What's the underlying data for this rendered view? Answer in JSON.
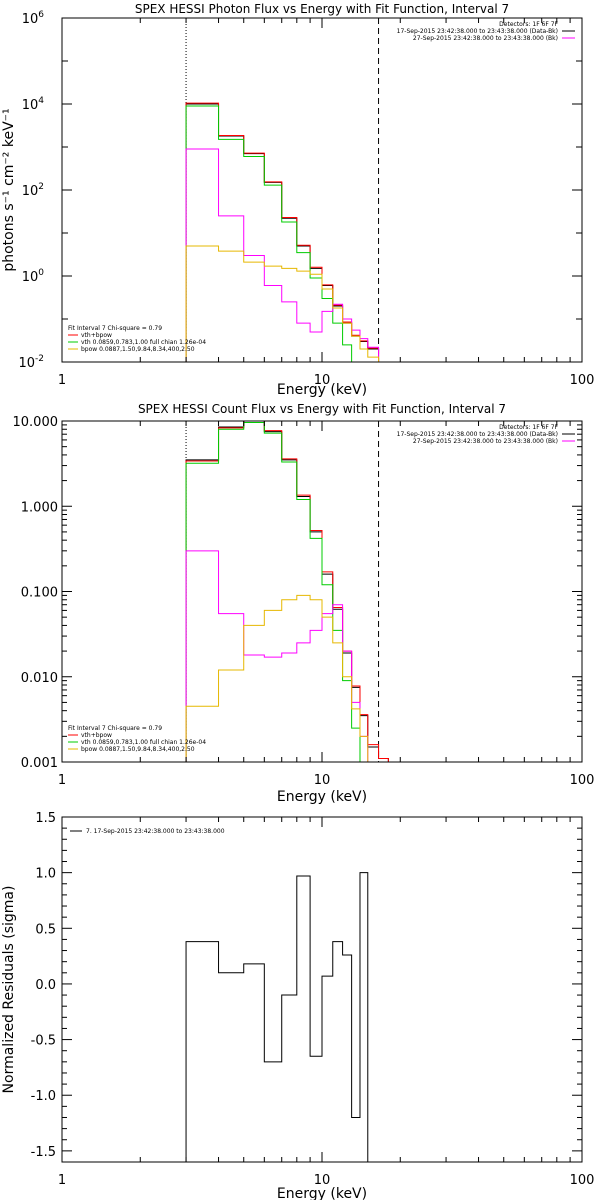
{
  "chart_data": [
    {
      "id": "photon",
      "type": "line",
      "title": "SPEX HESSI Photon Flux vs Energy with Fit Function, Interval 7",
      "xlabel": "Energy (keV)",
      "ylabel": "photons s⁻¹ cm⁻² keV⁻¹",
      "xscale": "log",
      "yscale": "log",
      "xlim": [
        1,
        100
      ],
      "ylim": [
        0.01,
        1000000
      ],
      "xticks": [
        "1",
        "10",
        "100"
      ],
      "ytick_values": [
        0.01,
        1,
        100,
        10000,
        1000000
      ],
      "ytick_mantissa": [
        "10",
        "10",
        "10",
        "10",
        "10"
      ],
      "ytick_exponent": [
        "-2",
        "0",
        "2",
        "4",
        "6"
      ],
      "vlines": [
        {
          "x": 3.0,
          "style": "dotted",
          "color": "#000000"
        },
        {
          "x": 16.5,
          "style": "dashed",
          "color": "#000000"
        }
      ],
      "header_lines": [
        {
          "text": "Detectors: 1F 6F 7F",
          "color": "#000000",
          "swatch": false
        },
        {
          "text": "17-Sep-2015 23:42:38.000 to 23:43:38.000 (Data-Bk)",
          "color": "#000000",
          "swatch": true
        },
        {
          "text": "27-Sep-2015 23:42:38.000 to 23:43:38.000 (Bk)",
          "color": "#ff00ff",
          "swatch": true
        }
      ],
      "fit_legend": [
        {
          "text": "Fit Interval  7   Chi-square = 0.79",
          "color": "#000000",
          "swatch": false
        },
        {
          "text": "vth+bpow",
          "color": "#ff0000",
          "swatch": true
        },
        {
          "text": "vth 0.0859,0.783,1.00  full chian 1.26e-04",
          "color": "#00cc00",
          "swatch": true
        },
        {
          "text": "bpow 0.0887,1.50,9.84,8.34,400,2.50",
          "color": "#e6b800",
          "swatch": true
        }
      ],
      "edges": [
        3.0,
        4.0,
        5.0,
        6.0,
        7.0,
        8.0,
        9.0,
        10.0,
        11.0,
        12.0,
        13.0,
        14.0,
        15.0,
        16.5
      ],
      "series": [
        {
          "name": "",
          "color": "#000000",
          "values": [
            10000,
            1800,
            700,
            150,
            22,
            5,
            1.5,
            0.6,
            0.2,
            0.08,
            0.04,
            0.03,
            0.02
          ]
        },
        {
          "name": "vth+bpow",
          "color": "#ff0000",
          "values": [
            10500,
            1850,
            720,
            155,
            23,
            5.2,
            1.6,
            0.62,
            0.21,
            0.085,
            0.042,
            0.031,
            0.021
          ]
        },
        {
          "name": "vth",
          "color": "#00cc00",
          "values": [
            9000,
            1500,
            600,
            130,
            18,
            3.5,
            0.9,
            0.3,
            0.08,
            0.025,
            0.01,
            0.01,
            0.01
          ]
        },
        {
          "name": "",
          "color": "#ff00ff",
          "values": [
            900,
            25,
            3,
            0.6,
            0.25,
            0.08,
            0.05,
            0.15,
            0.22,
            0.1,
            0.055,
            0.035,
            0.022
          ]
        },
        {
          "name": "bpow",
          "color": "#e6b800",
          "values": [
            5,
            3.8,
            2.1,
            1.7,
            1.5,
            1.3,
            1.1,
            0.5,
            0.18,
            0.08,
            0.04,
            0.02,
            0.013
          ]
        }
      ]
    },
    {
      "id": "count",
      "type": "line",
      "title": "SPEX HESSI Count Flux vs Energy with Fit Function, Interval 7",
      "xlabel": "Energy (keV)",
      "ylabel": "",
      "xscale": "log",
      "yscale": "log",
      "xlim": [
        1,
        100
      ],
      "ylim": [
        0.001,
        10
      ],
      "xticks": [
        "1",
        "10",
        "100"
      ],
      "ytick_values": [
        0.001,
        0.01,
        0.1,
        1,
        10
      ],
      "yticks": [
        "0.001",
        "0.010",
        "0.100",
        "1.000",
        "10.000"
      ],
      "vlines": [
        {
          "x": 3.0,
          "style": "dotted",
          "color": "#000000"
        },
        {
          "x": 16.5,
          "style": "dashed",
          "color": "#000000"
        }
      ],
      "header_lines": [
        {
          "text": "Detectors: 1F 6F 7F",
          "color": "#000000",
          "swatch": false
        },
        {
          "text": "17-Sep-2015 23:42:38.000 to 23:43:38.000 (Data-Bk)",
          "color": "#000000",
          "swatch": true
        },
        {
          "text": "27-Sep-2015 23:42:38.000 to 23:43:38.000 (Bk)",
          "color": "#ff00ff",
          "swatch": true
        }
      ],
      "fit_legend": [
        {
          "text": "Fit Interval  7   Chi-square = 0.79",
          "color": "#000000",
          "swatch": false
        },
        {
          "text": "vth+bpow",
          "color": "#ff0000",
          "swatch": true
        },
        {
          "text": "vth 0.0859,0.783,1.00  full chian 1.26e-04",
          "color": "#00cc00",
          "swatch": true
        },
        {
          "text": "bpow 0.0887,1.50,9.84,8.34,400,2.50",
          "color": "#e6b800",
          "swatch": true
        }
      ],
      "edges": [
        3.0,
        4.0,
        5.0,
        6.0,
        7.0,
        8.0,
        9.0,
        10.0,
        11.0,
        12.0,
        13.0,
        14.0,
        15.0,
        16.5,
        18.0
      ],
      "series": [
        {
          "name": "",
          "color": "#000000",
          "values": [
            3.5,
            8.5,
            10.0,
            7.5,
            3.5,
            1.3,
            0.5,
            0.16,
            0.062,
            0.019,
            0.0075,
            0.0035,
            0.0015,
            0.0011
          ]
        },
        {
          "name": "vth+bpow",
          "color": "#ff0000",
          "values": [
            3.4,
            8.3,
            10.2,
            7.7,
            3.6,
            1.35,
            0.52,
            0.17,
            0.065,
            0.02,
            0.0078,
            0.0036,
            0.0016,
            0.0011
          ]
        },
        {
          "name": "vth",
          "color": "#00cc00",
          "values": [
            3.2,
            8.0,
            9.6,
            7.2,
            3.3,
            1.2,
            0.42,
            0.12,
            0.035,
            0.009,
            0.0025,
            0.001,
            0.001,
            0.001
          ]
        },
        {
          "name": "",
          "color": "#ff00ff",
          "values": [
            0.3,
            0.055,
            0.018,
            0.017,
            0.019,
            0.025,
            0.035,
            0.055,
            0.07,
            0.02,
            0.005,
            0.002,
            0.001,
            0.001
          ]
        },
        {
          "name": "bpow",
          "color": "#e6b800",
          "values": [
            0.0045,
            0.012,
            0.04,
            0.06,
            0.08,
            0.09,
            0.08,
            0.05,
            0.025,
            0.01,
            0.0042,
            0.002,
            0.001,
            0.001
          ]
        }
      ]
    },
    {
      "id": "resid",
      "type": "line",
      "title": "",
      "xlabel": "Energy (keV)",
      "ylabel": "Normalized Residuals (sigma)",
      "xscale": "log",
      "yscale": "linear",
      "xlim": [
        1,
        100
      ],
      "ylim": [
        -1.6,
        1.5
      ],
      "xticks": [
        "1",
        "10",
        "100"
      ],
      "ytick_values": [
        -1.5,
        -1.0,
        -0.5,
        0.0,
        0.5,
        1.0,
        1.5
      ],
      "yticks": [
        "-1.5",
        "-1.0",
        "-0.5",
        "0.0",
        "0.5",
        "1.0",
        "1.5"
      ],
      "legend": [
        {
          "text": "7. 17-Sep-2015 23:42:38.000 to 23:43:38.000",
          "color": "#000000",
          "swatch": true
        }
      ],
      "edges": [
        3.0,
        4.0,
        5.0,
        6.0,
        7.0,
        8.0,
        9.0,
        10.0,
        11.0,
        12.0,
        13.0,
        14.0,
        15.0,
        16.5
      ],
      "series": [
        {
          "name": "7. 17-Sep-2015 23:42:38.000 to 23:43:38.000",
          "color": "#000000",
          "values": [
            0.38,
            0.1,
            0.18,
            -0.7,
            -0.1,
            0.97,
            -0.65,
            0.07,
            0.38,
            0.26,
            -1.2,
            1.0,
            -1.6
          ]
        }
      ]
    }
  ]
}
